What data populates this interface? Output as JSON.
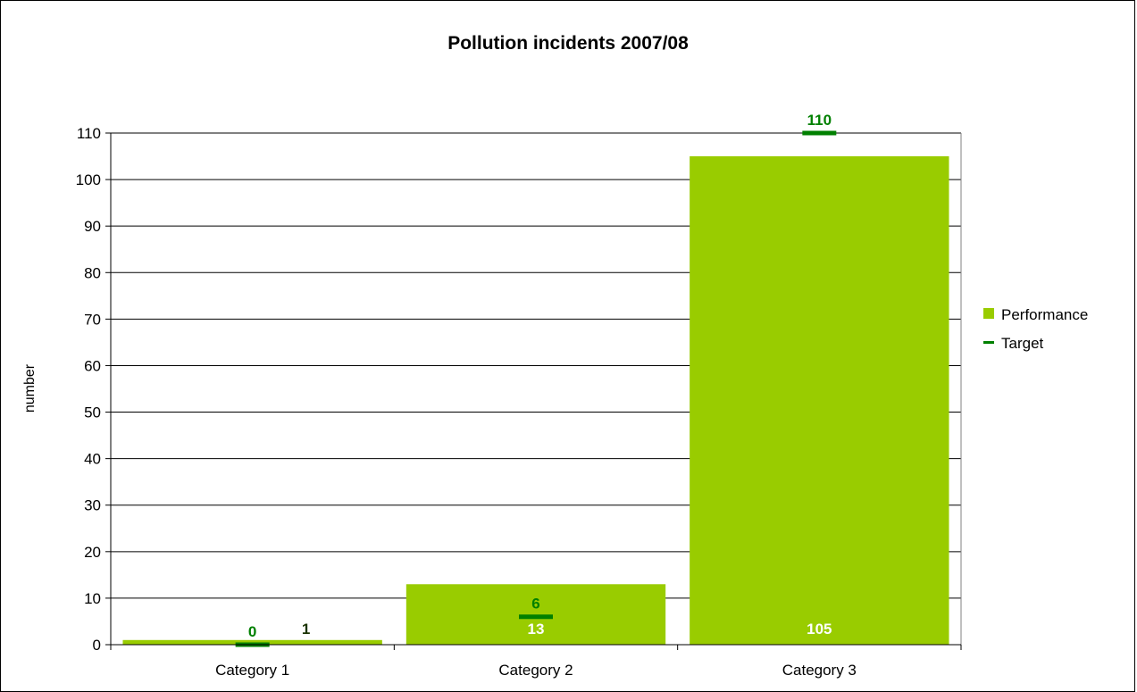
{
  "chart_data": {
    "type": "bar",
    "title": "Pollution incidents 2007/08",
    "xlabel": "",
    "ylabel": "number",
    "ylim": [
      0,
      110
    ],
    "yticks": [
      0,
      10,
      20,
      30,
      40,
      50,
      60,
      70,
      80,
      90,
      100,
      110
    ],
    "grid": true,
    "legend_position": "right",
    "categories": [
      "Category 1",
      "Category 2",
      "Category 3"
    ],
    "series": [
      {
        "name": "Performance",
        "kind": "bar",
        "color": "#99cc00",
        "values": [
          1,
          13,
          105
        ]
      },
      {
        "name": "Target",
        "kind": "marker",
        "color": "#008000",
        "values": [
          0,
          6,
          110
        ]
      }
    ]
  }
}
